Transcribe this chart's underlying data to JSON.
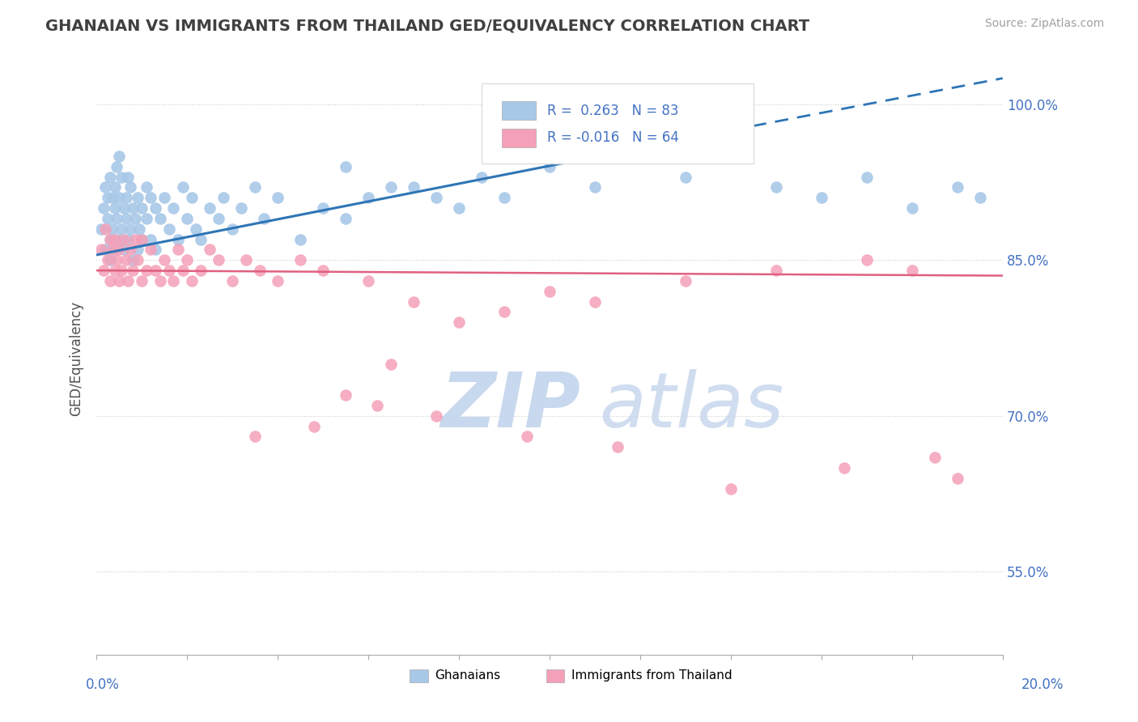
{
  "title": "GHANAIAN VS IMMIGRANTS FROM THAILAND GED/EQUIVALENCY CORRELATION CHART",
  "source_text": "Source: ZipAtlas.com",
  "ylabel": "GED/Equivalency",
  "xlim": [
    0.0,
    20.0
  ],
  "ylim": [
    47.0,
    104.0
  ],
  "yticks": [
    55.0,
    70.0,
    85.0,
    100.0
  ],
  "r1": 0.263,
  "n1": 83,
  "r2": -0.016,
  "n2": 64,
  "color_blue_scatter": "#A8C8E8",
  "color_pink_scatter": "#F4A0B8",
  "color_line_blue": "#2E75B6",
  "color_line_pink": "#E06080",
  "title_color": "#404040",
  "source_color": "#A0A0A0",
  "axis_label_color": "#4472C4",
  "blue_line_x0": 0.0,
  "blue_line_y0": 85.5,
  "blue_line_x1": 14.0,
  "blue_line_y1": 97.5,
  "blue_dash_x1": 20.0,
  "blue_dash_y1": 102.5,
  "pink_line_y0": 84.0,
  "pink_line_y1": 83.5,
  "gh_x": [
    0.1,
    0.15,
    0.2,
    0.2,
    0.25,
    0.25,
    0.3,
    0.3,
    0.3,
    0.35,
    0.35,
    0.4,
    0.4,
    0.4,
    0.45,
    0.45,
    0.5,
    0.5,
    0.5,
    0.55,
    0.55,
    0.6,
    0.6,
    0.65,
    0.65,
    0.7,
    0.7,
    0.75,
    0.75,
    0.8,
    0.8,
    0.85,
    0.9,
    0.9,
    0.95,
    1.0,
    1.0,
    1.1,
    1.1,
    1.2,
    1.2,
    1.3,
    1.3,
    1.4,
    1.5,
    1.6,
    1.7,
    1.8,
    1.9,
    2.0,
    2.1,
    2.2,
    2.3,
    2.5,
    2.7,
    2.8,
    3.0,
    3.2,
    3.5,
    3.7,
    4.0,
    4.5,
    5.0,
    5.5,
    6.0,
    7.0,
    8.0,
    9.0,
    11.0,
    13.0,
    14.0,
    16.0,
    17.0,
    18.0,
    19.0,
    5.5,
    6.5,
    7.5,
    8.5,
    10.0,
    12.0,
    15.0,
    19.5
  ],
  "gh_y": [
    88,
    90,
    92,
    86,
    89,
    91,
    93,
    87,
    85,
    91,
    88,
    90,
    86,
    92,
    89,
    94,
    91,
    87,
    95,
    88,
    93,
    90,
    86,
    91,
    89,
    93,
    87,
    92,
    88,
    90,
    85,
    89,
    91,
    86,
    88,
    90,
    87,
    92,
    89,
    91,
    87,
    90,
    86,
    89,
    91,
    88,
    90,
    87,
    92,
    89,
    91,
    88,
    87,
    90,
    89,
    91,
    88,
    90,
    92,
    89,
    91,
    87,
    90,
    89,
    91,
    92,
    90,
    91,
    92,
    93,
    95,
    91,
    93,
    90,
    92,
    94,
    92,
    91,
    93,
    94,
    96,
    92,
    91
  ],
  "th_x": [
    0.1,
    0.15,
    0.2,
    0.25,
    0.3,
    0.3,
    0.35,
    0.4,
    0.4,
    0.45,
    0.5,
    0.5,
    0.55,
    0.6,
    0.65,
    0.7,
    0.75,
    0.8,
    0.85,
    0.9,
    1.0,
    1.0,
    1.1,
    1.2,
    1.3,
    1.4,
    1.5,
    1.6,
    1.7,
    1.8,
    1.9,
    2.0,
    2.1,
    2.3,
    2.5,
    2.7,
    3.0,
    3.3,
    3.6,
    4.0,
    4.5,
    5.0,
    5.5,
    6.0,
    6.5,
    7.0,
    8.0,
    9.0,
    10.0,
    11.0,
    13.0,
    15.0,
    17.0,
    18.0,
    3.5,
    4.8,
    6.2,
    7.5,
    9.5,
    11.5,
    14.0,
    16.5,
    18.5,
    19.0
  ],
  "th_y": [
    86,
    84,
    88,
    85,
    87,
    83,
    86,
    84,
    87,
    85,
    83,
    86,
    84,
    87,
    85,
    83,
    86,
    84,
    87,
    85,
    83,
    87,
    84,
    86,
    84,
    83,
    85,
    84,
    83,
    86,
    84,
    85,
    83,
    84,
    86,
    85,
    83,
    85,
    84,
    83,
    85,
    84,
    72,
    83,
    75,
    81,
    79,
    80,
    82,
    81,
    83,
    84,
    85,
    84,
    68,
    69,
    71,
    70,
    68,
    67,
    63,
    65,
    66,
    64
  ]
}
